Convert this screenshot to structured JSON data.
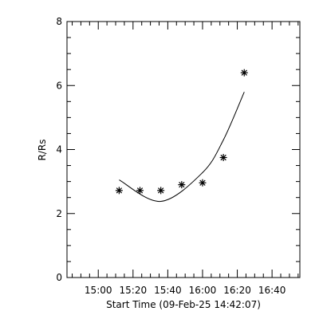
{
  "chart_data": {
    "type": "scatter",
    "xlabel": "Start Time (09-Feb-25 14:42:07)",
    "ylabel": "R/Rs",
    "xlim": [
      "14:42",
      "16:56"
    ],
    "ylim": [
      0,
      8
    ],
    "x_tick_labels": [
      "15:00",
      "15:20",
      "15:40",
      "16:00",
      "16:20",
      "16:40"
    ],
    "y_tick_labels": [
      "0",
      "2",
      "4",
      "6",
      "8"
    ],
    "grid": false,
    "legend": "none",
    "series": [
      {
        "mark": "asterisk",
        "x": [
          "15:12",
          "15:24",
          "15:36",
          "15:48",
          "16:00",
          "16:12",
          "16:24"
        ],
        "y": [
          2.72,
          2.72,
          2.72,
          2.9,
          2.96,
          3.75,
          6.4
        ]
      },
      {
        "mark": "line",
        "x": [
          "15:12",
          "15:36",
          "16:00",
          "16:12",
          "16:24"
        ],
        "y": [
          3.05,
          2.38,
          3.28,
          4.3,
          5.8
        ]
      }
    ]
  }
}
